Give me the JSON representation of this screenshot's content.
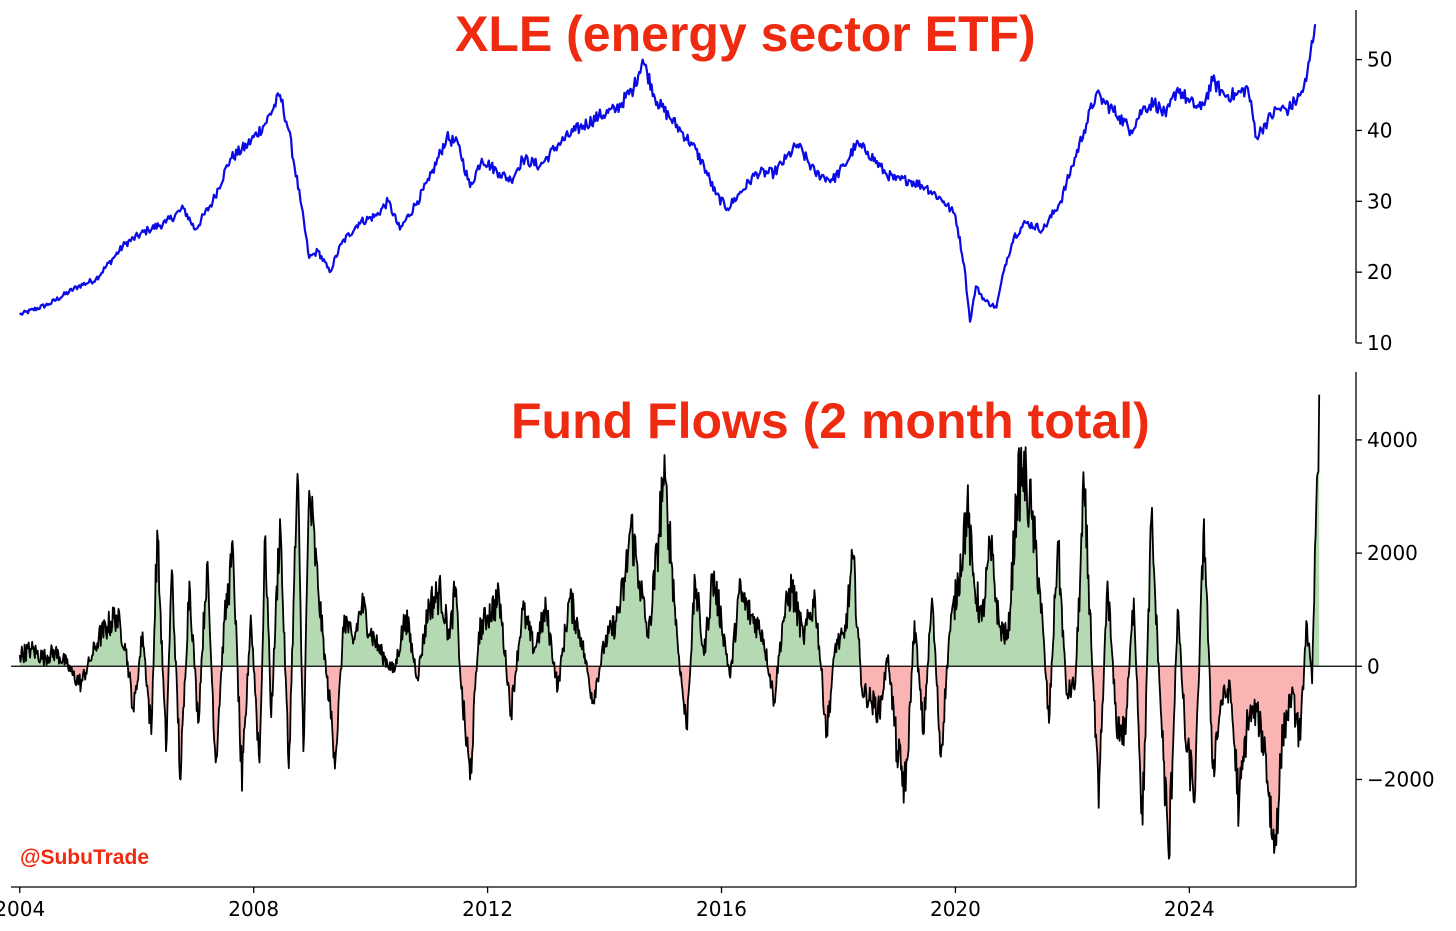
{
  "watermark": "@SubuTrade",
  "colors": {
    "title": "#ee2a10",
    "price_line": "#0a0ae6",
    "flow_line": "#000000",
    "positive_fill": "#b5dab3",
    "negative_fill": "#fbb4b4"
  },
  "chart_data": [
    {
      "type": "line",
      "title": "XLE (energy sector ETF)",
      "xlabel": "",
      "ylabel": "",
      "xlim": [
        2003.85,
        2026.85
      ],
      "ylim": [
        10,
        57
      ],
      "yticks": [
        10,
        20,
        30,
        40,
        50
      ],
      "y_axis_side": "right",
      "grid": false,
      "series": [
        {
          "x": [
            2004.0,
            2004.5,
            2005.0,
            2005.3,
            2005.6,
            2005.8,
            2006.2,
            2006.5,
            2006.8,
            2007.0,
            2007.3,
            2007.6,
            2007.9,
            2008.2,
            2008.45,
            2008.6,
            2008.8,
            2008.95,
            2009.1,
            2009.3,
            2009.5,
            2009.8,
            2010.1,
            2010.3,
            2010.5,
            2010.8,
            2011.0,
            2011.3,
            2011.5,
            2011.7,
            2011.9,
            2012.2,
            2012.4,
            2012.6,
            2012.9,
            2013.2,
            2013.5,
            2013.9,
            2014.2,
            2014.5,
            2014.65,
            2014.9,
            2015.1,
            2015.3,
            2015.5,
            2015.7,
            2015.9,
            2016.1,
            2016.3,
            2016.6,
            2016.9,
            2017.1,
            2017.3,
            2017.6,
            2017.9,
            2018.1,
            2018.3,
            2018.5,
            2018.8,
            2018.98,
            2019.2,
            2019.5,
            2019.8,
            2020.0,
            2020.15,
            2020.25,
            2020.35,
            2020.5,
            2020.7,
            2020.85,
            2021.0,
            2021.2,
            2021.5,
            2021.8,
            2022.0,
            2022.2,
            2022.4,
            2022.55,
            2022.8,
            2023.0,
            2023.2,
            2023.4,
            2023.6,
            2023.8,
            2024.0,
            2024.2,
            2024.4,
            2024.6,
            2024.8,
            2025.0,
            2025.15,
            2025.3,
            2025.5,
            2025.7,
            2025.9,
            2026.0,
            2026.15
          ],
          "values": [
            14,
            15.5,
            18,
            19,
            22,
            24,
            26,
            27,
            29,
            26,
            30,
            36,
            38,
            41,
            45,
            40,
            30,
            22,
            23,
            20,
            24,
            27,
            28,
            30,
            26,
            30,
            33,
            39,
            38,
            32,
            36,
            34,
            33,
            36,
            35,
            38,
            40,
            42,
            43,
            46,
            50,
            44,
            42,
            40,
            38,
            35,
            31,
            29,
            31,
            34,
            34,
            36,
            38,
            34,
            33,
            35,
            38,
            37,
            34,
            33,
            33,
            32,
            30,
            28,
            21,
            13,
            18,
            16,
            15,
            21,
            25,
            27,
            26,
            30,
            35,
            40,
            45,
            44,
            42,
            40,
            43,
            44,
            42,
            46,
            44,
            43,
            47,
            45,
            45,
            46,
            39,
            41,
            43,
            43,
            45,
            47,
            55
          ]
        }
      ]
    },
    {
      "type": "area",
      "title": "Fund Flows (2 month total)",
      "xlabel": "",
      "ylabel": "",
      "xlim": [
        2003.85,
        2026.85
      ],
      "ylim": [
        -3900,
        5200
      ],
      "yticks": [
        -2000,
        0,
        2000,
        4000
      ],
      "xticks": [
        2004,
        2008,
        2012,
        2016,
        2020,
        2024
      ],
      "y_axis_side": "right",
      "baseline": 0,
      "fill_positive_color": "green",
      "fill_negative_color": "red",
      "grid": false,
      "series": [
        {
          "x": [
            2004.0,
            2004.2,
            2004.4,
            2004.6,
            2004.8,
            2004.9,
            2005.05,
            2005.2,
            2005.35,
            2005.5,
            2005.65,
            2005.8,
            2005.95,
            2006.1,
            2006.25,
            2006.35,
            2006.5,
            2006.6,
            2006.75,
            2006.9,
            2007.05,
            2007.2,
            2007.35,
            2007.5,
            2007.65,
            2007.8,
            2007.95,
            2008.1,
            2008.2,
            2008.3,
            2008.45,
            2008.6,
            2008.75,
            2008.85,
            2008.95,
            2009.1,
            2009.25,
            2009.4,
            2009.55,
            2009.7,
            2009.85,
            2010.0,
            2010.2,
            2010.4,
            2010.6,
            2010.8,
            2011.0,
            2011.2,
            2011.35,
            2011.45,
            2011.55,
            2011.7,
            2011.85,
            2012.0,
            2012.2,
            2012.4,
            2012.6,
            2012.8,
            2013.0,
            2013.2,
            2013.4,
            2013.6,
            2013.8,
            2014.0,
            2014.2,
            2014.35,
            2014.45,
            2014.6,
            2014.75,
            2014.9,
            2015.0,
            2015.1,
            2015.25,
            2015.4,
            2015.55,
            2015.7,
            2015.85,
            2016.0,
            2016.15,
            2016.3,
            2016.5,
            2016.7,
            2016.9,
            2017.05,
            2017.2,
            2017.4,
            2017.6,
            2017.8,
            2017.95,
            2018.1,
            2018.25,
            2018.4,
            2018.55,
            2018.7,
            2018.85,
            2019.0,
            2019.15,
            2019.3,
            2019.45,
            2019.6,
            2019.75,
            2019.9,
            2020.05,
            2020.2,
            2020.3,
            2020.45,
            2020.6,
            2020.75,
            2020.9,
            2021.05,
            2021.15,
            2021.3,
            2021.45,
            2021.6,
            2021.75,
            2021.9,
            2022.05,
            2022.2,
            2022.3,
            2022.45,
            2022.6,
            2022.75,
            2022.9,
            2023.05,
            2023.2,
            2023.35,
            2023.5,
            2023.65,
            2023.8,
            2023.95,
            2024.1,
            2024.25,
            2024.4,
            2024.55,
            2024.7,
            2024.85,
            2025.0,
            2025.15,
            2025.3,
            2025.45,
            2025.6,
            2025.75,
            2025.9,
            2026.0,
            2026.1,
            2026.17,
            2026.22
          ],
          "values": [
            200,
            300,
            150,
            250,
            50,
            -150,
            -300,
            100,
            500,
            700,
            900,
            400,
            -800,
            600,
            -1200,
            2400,
            -1500,
            1700,
            -2000,
            1500,
            -1000,
            1800,
            -1700,
            800,
            2000,
            -2200,
            900,
            -1700,
            2300,
            -900,
            2600,
            -1800,
            3400,
            -1500,
            3100,
            1400,
            -200,
            -1600,
            900,
            400,
            1100,
            600,
            200,
            -100,
            900,
            -200,
            1100,
            1300,
            500,
            1400,
            -400,
            -2000,
            600,
            900,
            1200,
            -800,
            1000,
            300,
            1000,
            -400,
            1200,
            500,
            -600,
            400,
            800,
            1500,
            2500,
            1500,
            500,
            2000,
            3300,
            2500,
            400,
            -1100,
            1500,
            200,
            1600,
            800,
            -200,
            1300,
            900,
            600,
            -600,
            800,
            1400,
            500,
            1200,
            -1200,
            400,
            500,
            1900,
            -400,
            -600,
            -800,
            200,
            -1500,
            -2200,
            800,
            -1200,
            1200,
            -1600,
            600,
            1500,
            2800,
            1600,
            800,
            2100,
            700,
            500,
            3000,
            3500,
            2700,
            1300,
            -1000,
            2200,
            -500,
            -300,
            3100,
            1000,
            -2500,
            1500,
            -1000,
            -1200,
            1200,
            -2800,
            2600,
            -500,
            -3400,
            1000,
            -1500,
            -2200,
            2600,
            -1800,
            -600,
            -400,
            -2500,
            -900,
            -800,
            -1500,
            -3300,
            -1200,
            -500,
            -1300,
            800,
            -300,
            2800,
            4800
          ]
        }
      ]
    }
  ]
}
